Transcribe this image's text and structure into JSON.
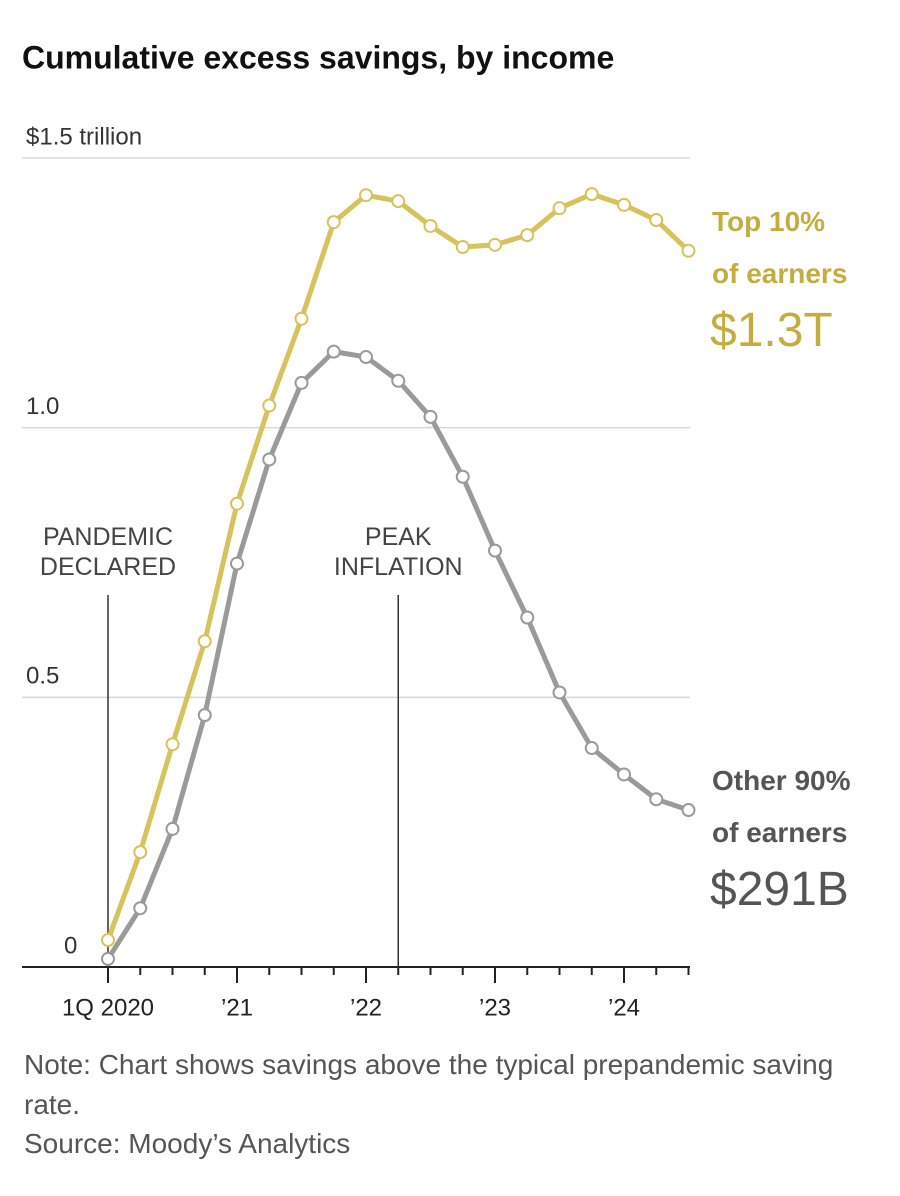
{
  "chart_data": {
    "type": "line",
    "title": "Cumulative excess savings, by income",
    "categories": [
      "1Q 2020",
      null,
      null,
      null,
      "’21",
      null,
      null,
      null,
      "’22",
      null,
      null,
      null,
      "’23",
      null,
      null,
      null,
      "’24",
      null,
      null
    ],
    "ylim": [
      0,
      1.5
    ],
    "yticks": [
      {
        "value": 0,
        "label": "0"
      },
      {
        "value": 0.5,
        "label": "0.5"
      },
      {
        "value": 1,
        "label": "1.0"
      },
      {
        "value": 1.5,
        "label": "$1.5 trillion"
      }
    ],
    "grid": true,
    "series": [
      {
        "name": "Top 10%\nof earners",
        "color": "#d6c35c",
        "label_color": "#c4ad3f",
        "values": [
          0.05,
          0.213,
          0.413,
          0.604,
          0.859,
          1.041,
          1.202,
          1.381,
          1.431,
          1.42,
          1.374,
          1.335,
          1.339,
          1.357,
          1.407,
          1.433,
          1.413,
          1.385,
          1.328
        ],
        "value_labels": [
          null,
          null,
          null,
          null,
          null,
          null,
          null,
          null,
          null,
          null,
          null,
          null,
          null,
          null,
          null,
          null,
          null,
          null,
          "$1.3T"
        ]
      },
      {
        "name": "Other 90%\nof earners",
        "color": "#9a9a9a",
        "label_color": "#555555",
        "values": [
          0.015,
          0.109,
          0.256,
          0.467,
          0.748,
          0.941,
          1.083,
          1.141,
          1.131,
          1.087,
          1.02,
          0.909,
          0.772,
          0.648,
          0.509,
          0.406,
          0.357,
          0.311,
          0.291
        ],
        "value_labels": [
          null,
          null,
          null,
          null,
          null,
          null,
          null,
          null,
          null,
          null,
          null,
          null,
          null,
          null,
          null,
          null,
          null,
          null,
          "$291B"
        ]
      }
    ],
    "annotations": [
      {
        "text": "PANDEMIC\nDECLARED",
        "category_index": 0
      },
      {
        "text": "PEAK\nINFLATION",
        "category_index": 9
      }
    ],
    "note": "Note: Chart shows savings above the typical prepandemic saving rate.",
    "source": "Source: Moody’s Analytics"
  }
}
